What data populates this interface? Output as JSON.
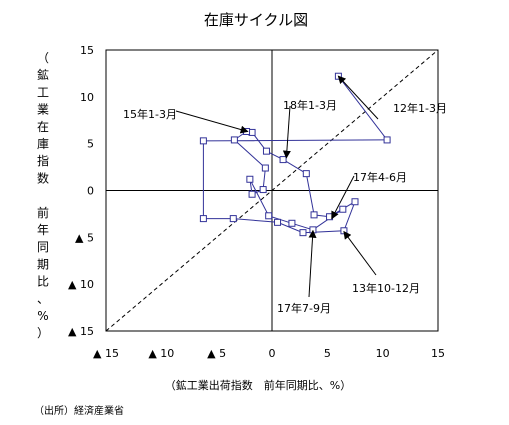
{
  "chart_data": {
    "type": "line",
    "title": "在庫サイクル図",
    "ylabel": "（鉱工業在庫指数　前年同期比、%）",
    "xlabel": "（鉱工業出荷指数　前年同期比、%）",
    "source": "（出所）経済産業省",
    "xlim": [
      -15,
      15
    ],
    "ylim": [
      -15,
      15
    ],
    "x_ticks": [
      {
        "value": -15,
        "label": "▲ 15"
      },
      {
        "value": -10,
        "label": "▲ 10"
      },
      {
        "value": -5,
        "label": "▲ 5"
      },
      {
        "value": 0,
        "label": "0"
      },
      {
        "value": 5,
        "label": "5"
      },
      {
        "value": 10,
        "label": "10"
      },
      {
        "value": 15,
        "label": "15"
      }
    ],
    "y_ticks": [
      {
        "value": 15,
        "label": "15"
      },
      {
        "value": 10,
        "label": "10"
      },
      {
        "value": 5,
        "label": "5"
      },
      {
        "value": 0,
        "label": "0"
      },
      {
        "value": -5,
        "label": "▲ 5"
      },
      {
        "value": -10,
        "label": "▲ 10"
      },
      {
        "value": -15,
        "label": "▲ 15"
      }
    ],
    "diagonal": [
      [
        -15,
        -15
      ],
      [
        15,
        15
      ]
    ],
    "series": [
      {
        "color": "#333399",
        "points": [
          [
            6.0,
            12.2
          ],
          [
            10.4,
            5.4
          ],
          [
            -6.2,
            5.3
          ],
          [
            -6.2,
            -3.0
          ],
          [
            -3.5,
            -3.0
          ],
          [
            0.5,
            -3.4
          ],
          [
            2.8,
            -4.5
          ],
          [
            6.5,
            -4.3
          ],
          [
            7.5,
            -1.2
          ],
          [
            5.2,
            -2.8
          ],
          [
            3.8,
            -2.6
          ],
          [
            3.1,
            1.8
          ],
          [
            1.0,
            3.3
          ],
          [
            -0.5,
            4.2
          ],
          [
            -1.8,
            6.2
          ],
          [
            -2.3,
            6.3
          ],
          [
            -3.4,
            5.4
          ],
          [
            -0.6,
            2.4
          ],
          [
            -0.8,
            0.1
          ],
          [
            -1.8,
            -0.4
          ],
          [
            -2.0,
            1.2
          ],
          [
            -0.3,
            -2.7
          ],
          [
            1.8,
            -3.5
          ],
          [
            3.7,
            -4.2
          ],
          [
            6.4,
            -2.0
          ]
        ]
      }
    ],
    "annotations": [
      {
        "text": "12年1-3月",
        "target": [
          6.0,
          12.2
        ]
      },
      {
        "text": "15年1-3月",
        "target": [
          -2.2,
          6.3
        ]
      },
      {
        "text": "18年1-3月",
        "target": [
          1.3,
          3.5
        ]
      },
      {
        "text": "17年4-6月",
        "target": [
          5.4,
          -3.0
        ]
      },
      {
        "text": "13年10-12月",
        "target": [
          6.5,
          -4.4
        ]
      },
      {
        "text": "17年7-9月",
        "target": [
          3.7,
          -4.3
        ]
      }
    ]
  }
}
